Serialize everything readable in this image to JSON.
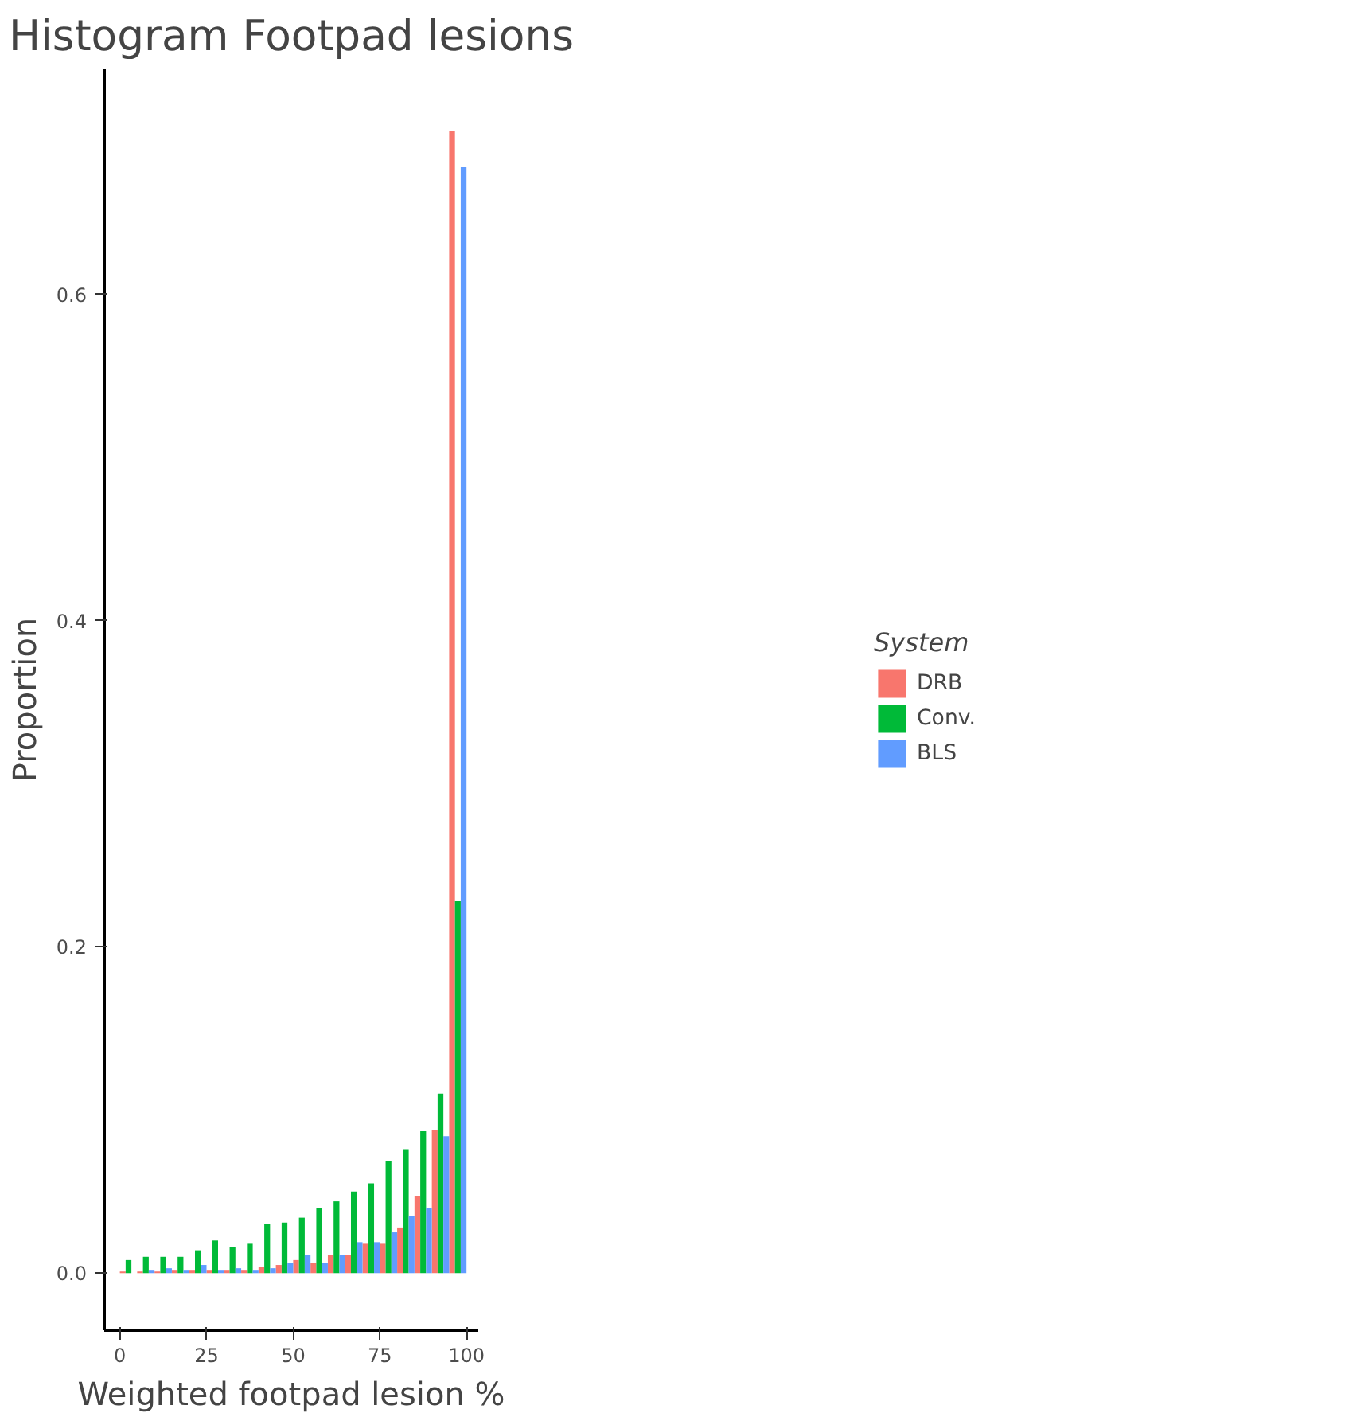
{
  "chart_data": {
    "type": "histogram",
    "title": "Histogram Footpad lesions",
    "xlabel": "Weighted footpad lesion %",
    "ylabel": "Proportion",
    "legend_title": "System",
    "bins": [
      0,
      5,
      10,
      15,
      20,
      25,
      30,
      35,
      40,
      45,
      50,
      55,
      60,
      65,
      70,
      75,
      80,
      85,
      90,
      95,
      100
    ],
    "series": [
      {
        "name": "DRB",
        "color": "#f8766d",
        "values": [
          0.001,
          0.001,
          0.001,
          0.002,
          0.002,
          0.002,
          0.002,
          0.002,
          0.004,
          0.005,
          0.008,
          0.006,
          0.011,
          0.011,
          0.018,
          0.018,
          0.028,
          0.047,
          0.088,
          0.7
        ]
      },
      {
        "name": "Conv.",
        "color": "#00ba38",
        "values": [
          0.008,
          0.01,
          0.01,
          0.01,
          0.014,
          0.02,
          0.016,
          0.018,
          0.03,
          0.031,
          0.034,
          0.04,
          0.044,
          0.05,
          0.055,
          0.069,
          0.076,
          0.087,
          0.11,
          0.228
        ]
      },
      {
        "name": "BLS",
        "color": "#619cff",
        "values": [
          0.0,
          0.002,
          0.003,
          0.002,
          0.005,
          0.002,
          0.003,
          0.002,
          0.003,
          0.006,
          0.011,
          0.006,
          0.011,
          0.019,
          0.019,
          0.025,
          0.035,
          0.04,
          0.084,
          0.678
        ]
      }
    ],
    "xlim": [
      -4.5,
      103.4
    ],
    "ylim": [
      -0.035,
      0.738
    ],
    "xticks": [
      0,
      25,
      50,
      75,
      100
    ],
    "yticks": [
      {
        "value": 0,
        "label": "0.0"
      },
      {
        "value": 0.2,
        "label": "0.2"
      },
      {
        "value": 0.4,
        "label": "0.4"
      },
      {
        "value": 0.6,
        "label": "0.6"
      }
    ],
    "grid": false,
    "legend": "right"
  }
}
